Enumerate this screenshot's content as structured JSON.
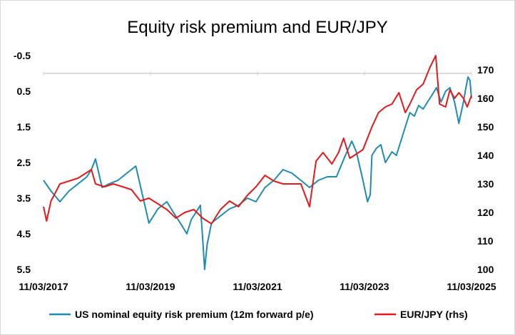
{
  "chart_data": {
    "type": "line",
    "title": "Equity risk premium and EUR/JPY",
    "xlabel": "",
    "ylabel": "",
    "grid": false,
    "legend_position": "bottom",
    "x_ticks": [
      "11/03/2017",
      "11/03/2019",
      "11/03/2021",
      "11/03/2023",
      "11/03/2025"
    ],
    "y_left": {
      "inverted": true,
      "range": [
        -0.5,
        5.5
      ],
      "ticks": [
        "-0.5",
        "0.5",
        "1.5",
        "2.5",
        "3.5",
        "4.5",
        "5.5"
      ]
    },
    "y_right": {
      "range": [
        100,
        175
      ],
      "ticks": [
        "170",
        "160",
        "150",
        "140",
        "130",
        "120",
        "110",
        "100"
      ]
    },
    "series": [
      {
        "name": "US nominal equity risk premium (12m forward p/e)",
        "axis": "left",
        "color": "#1f8bb0",
        "points": [
          [
            "2017-03-11",
            3.0
          ],
          [
            "2017-05-01",
            3.3
          ],
          [
            "2017-07-01",
            3.6
          ],
          [
            "2017-09-01",
            3.3
          ],
          [
            "2017-11-01",
            3.1
          ],
          [
            "2018-01-01",
            2.9
          ],
          [
            "2018-02-01",
            2.7
          ],
          [
            "2018-03-01",
            2.4
          ],
          [
            "2018-04-15",
            3.2
          ],
          [
            "2018-06-01",
            3.1
          ],
          [
            "2018-08-01",
            3.0
          ],
          [
            "2018-10-01",
            2.8
          ],
          [
            "2018-12-01",
            2.6
          ],
          [
            "2019-01-15",
            3.4
          ],
          [
            "2019-03-01",
            4.2
          ],
          [
            "2019-05-01",
            3.8
          ],
          [
            "2019-07-01",
            3.6
          ],
          [
            "2019-08-15",
            3.9
          ],
          [
            "2019-10-01",
            4.2
          ],
          [
            "2019-11-15",
            4.5
          ],
          [
            "2019-12-15",
            4.1
          ],
          [
            "2020-01-15",
            3.9
          ],
          [
            "2020-02-15",
            3.7
          ],
          [
            "2020-03-01",
            4.6
          ],
          [
            "2020-03-15",
            5.5
          ],
          [
            "2020-04-01",
            4.8
          ],
          [
            "2020-05-01",
            4.2
          ],
          [
            "2020-07-01",
            4.0
          ],
          [
            "2020-09-01",
            3.8
          ],
          [
            "2020-11-01",
            3.7
          ],
          [
            "2021-01-01",
            3.5
          ],
          [
            "2021-03-01",
            3.6
          ],
          [
            "2021-05-01",
            3.2
          ],
          [
            "2021-07-01",
            3.0
          ],
          [
            "2021-09-01",
            2.7
          ],
          [
            "2021-11-01",
            2.8
          ],
          [
            "2022-01-01",
            3.0
          ],
          [
            "2022-03-01",
            3.2
          ],
          [
            "2022-05-01",
            3.0
          ],
          [
            "2022-07-01",
            2.9
          ],
          [
            "2022-09-01",
            2.9
          ],
          [
            "2022-11-01",
            2.3
          ],
          [
            "2022-12-15",
            1.9
          ],
          [
            "2023-01-15",
            2.2
          ],
          [
            "2023-03-01",
            3.0
          ],
          [
            "2023-04-01",
            3.6
          ],
          [
            "2023-04-20",
            3.4
          ],
          [
            "2023-05-01",
            2.3
          ],
          [
            "2023-06-01",
            2.1
          ],
          [
            "2023-07-01",
            2.0
          ],
          [
            "2023-08-01",
            2.5
          ],
          [
            "2023-09-15",
            2.2
          ],
          [
            "2023-10-15",
            2.3
          ],
          [
            "2023-11-15",
            1.9
          ],
          [
            "2023-12-15",
            1.5
          ],
          [
            "2024-01-15",
            1.1
          ],
          [
            "2024-02-15",
            1.2
          ],
          [
            "2024-03-15",
            0.9
          ],
          [
            "2024-04-15",
            1.0
          ],
          [
            "2024-05-15",
            0.8
          ],
          [
            "2024-06-15",
            0.6
          ],
          [
            "2024-07-15",
            0.4
          ],
          [
            "2024-08-15",
            0.8
          ],
          [
            "2024-09-15",
            0.5
          ],
          [
            "2024-10-15",
            0.4
          ],
          [
            "2024-11-15",
            0.8
          ],
          [
            "2024-12-15",
            1.4
          ],
          [
            "2025-01-15",
            0.8
          ],
          [
            "2025-02-01",
            0.4
          ],
          [
            "2025-02-15",
            0.1
          ],
          [
            "2025-03-01",
            0.2
          ],
          [
            "2025-03-11",
            0.7
          ]
        ]
      },
      {
        "name": "EUR/JPY (rhs)",
        "axis": "right",
        "color": "#e31a1c",
        "points": [
          [
            "2017-03-11",
            122
          ],
          [
            "2017-04-01",
            117
          ],
          [
            "2017-05-01",
            124
          ],
          [
            "2017-07-01",
            130
          ],
          [
            "2017-09-01",
            131
          ],
          [
            "2017-11-01",
            132
          ],
          [
            "2018-01-01",
            134
          ],
          [
            "2018-02-01",
            135
          ],
          [
            "2018-03-01",
            130
          ],
          [
            "2018-05-01",
            129
          ],
          [
            "2018-07-01",
            130
          ],
          [
            "2018-09-01",
            129
          ],
          [
            "2018-11-01",
            128
          ],
          [
            "2019-01-01",
            124
          ],
          [
            "2019-03-01",
            125
          ],
          [
            "2019-05-01",
            123
          ],
          [
            "2019-07-01",
            121
          ],
          [
            "2019-09-01",
            118
          ],
          [
            "2019-11-01",
            120
          ],
          [
            "2020-01-01",
            121
          ],
          [
            "2020-03-01",
            118
          ],
          [
            "2020-05-01",
            116
          ],
          [
            "2020-07-01",
            121
          ],
          [
            "2020-09-01",
            124
          ],
          [
            "2020-11-01",
            122
          ],
          [
            "2021-01-01",
            126
          ],
          [
            "2021-03-01",
            129
          ],
          [
            "2021-05-01",
            133
          ],
          [
            "2021-07-01",
            131
          ],
          [
            "2021-09-01",
            130
          ],
          [
            "2021-11-01",
            130
          ],
          [
            "2022-01-01",
            130
          ],
          [
            "2022-03-01",
            122
          ],
          [
            "2022-04-15",
            138
          ],
          [
            "2022-06-01",
            141
          ],
          [
            "2022-08-01",
            137
          ],
          [
            "2022-09-15",
            141
          ],
          [
            "2022-10-20",
            146
          ],
          [
            "2022-12-01",
            139
          ],
          [
            "2023-01-01",
            140
          ],
          [
            "2023-03-01",
            142
          ],
          [
            "2023-05-01",
            150
          ],
          [
            "2023-06-15",
            155
          ],
          [
            "2023-08-01",
            157
          ],
          [
            "2023-09-15",
            158
          ],
          [
            "2023-11-01",
            162
          ],
          [
            "2023-12-15",
            155
          ],
          [
            "2024-01-15",
            158
          ],
          [
            "2024-03-01",
            163
          ],
          [
            "2024-04-15",
            165
          ],
          [
            "2024-06-01",
            171
          ],
          [
            "2024-07-10",
            175
          ],
          [
            "2024-08-05",
            158
          ],
          [
            "2024-09-15",
            157
          ],
          [
            "2024-10-15",
            163
          ],
          [
            "2024-11-15",
            160
          ],
          [
            "2024-12-15",
            162
          ],
          [
            "2025-01-15",
            160
          ],
          [
            "2025-02-10",
            157
          ],
          [
            "2025-03-11",
            161
          ]
        ]
      }
    ]
  }
}
